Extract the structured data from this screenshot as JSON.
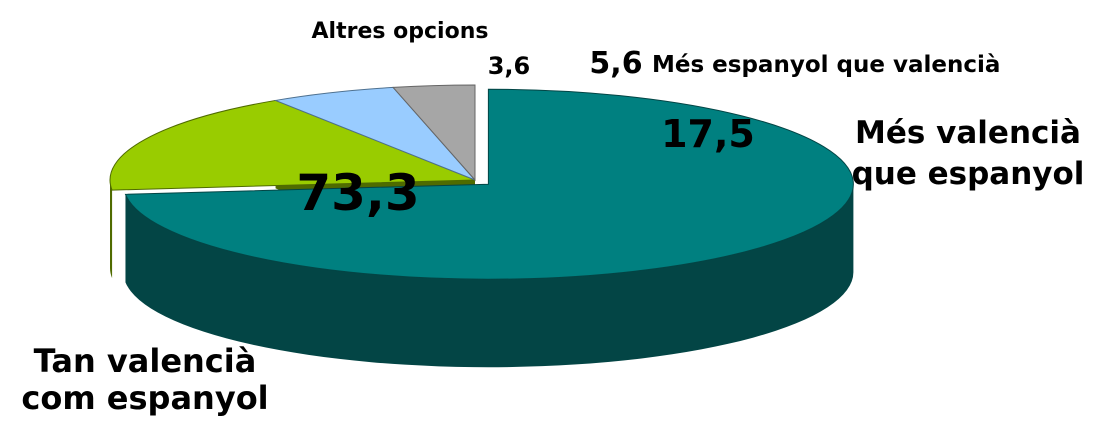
{
  "chart_data": {
    "type": "pie",
    "title": "",
    "slices": [
      {
        "name_lines": [
          "Tan valencià",
          "com espanyol"
        ],
        "value": 73.3,
        "value_label": "73,3",
        "color": "#008080",
        "side_color": "#034545"
      },
      {
        "name_lines": [
          "Més valencià",
          "que espanyol"
        ],
        "value": 17.5,
        "value_label": "17,5",
        "color": "#99CC00",
        "side_color": "#4F6B00"
      },
      {
        "name_lines": [
          "Més espanyol que valencià"
        ],
        "value": 5.6,
        "value_label": "5,6",
        "color": "#99CCFF",
        "side_color": "#4E7190"
      },
      {
        "name_lines": [
          "Altres opcions"
        ],
        "value": 3.6,
        "value_label": "3,6",
        "color": "#A6A6A6",
        "side_color": "#666666"
      }
    ]
  }
}
